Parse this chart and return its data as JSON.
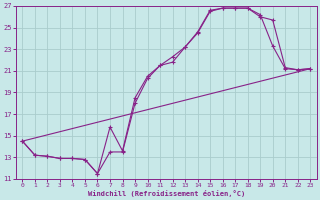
{
  "xlabel": "Windchill (Refroidissement éolien,°C)",
  "bg_color": "#c8e8e8",
  "grid_color": "#b0d0d0",
  "line_color": "#882288",
  "xlim": [
    -0.5,
    23.5
  ],
  "ylim": [
    11,
    27
  ],
  "yticks": [
    11,
    13,
    15,
    17,
    19,
    21,
    23,
    25,
    27
  ],
  "xticks": [
    0,
    1,
    2,
    3,
    4,
    5,
    6,
    7,
    8,
    9,
    10,
    11,
    12,
    13,
    14,
    15,
    16,
    17,
    18,
    19,
    20,
    21,
    22,
    23
  ],
  "series1_x": [
    0,
    1,
    2,
    3,
    4,
    5,
    6,
    7,
    8,
    9,
    10,
    11,
    12,
    13,
    14,
    15,
    16,
    17,
    18,
    19,
    20,
    21,
    22,
    23
  ],
  "series1_y": [
    14.5,
    13.2,
    13.1,
    12.9,
    12.9,
    12.8,
    11.5,
    13.5,
    13.5,
    18.0,
    20.3,
    21.5,
    21.8,
    23.2,
    24.5,
    26.5,
    26.8,
    26.8,
    26.8,
    26.0,
    25.7,
    21.3,
    21.1,
    21.2
  ],
  "series2_x": [
    0,
    1,
    2,
    3,
    4,
    5,
    6,
    7,
    8,
    9,
    10,
    11,
    12,
    13,
    14,
    15,
    16,
    17,
    18,
    19,
    20,
    21,
    22,
    23
  ],
  "series2_y": [
    14.5,
    13.2,
    13.1,
    12.9,
    12.9,
    12.8,
    11.5,
    15.8,
    13.6,
    18.5,
    20.5,
    21.5,
    22.3,
    23.2,
    24.6,
    26.6,
    26.8,
    26.8,
    26.8,
    26.2,
    23.3,
    21.2,
    21.1,
    21.2
  ],
  "series3_x": [
    0,
    23
  ],
  "series3_y": [
    14.5,
    21.2
  ],
  "marker": "+",
  "markersize": 3.0,
  "linewidth": 0.8
}
